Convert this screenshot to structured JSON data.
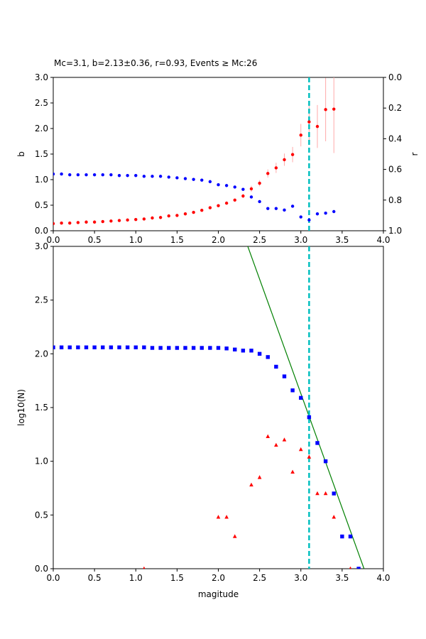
{
  "chart_data": [
    {
      "type": "scatter",
      "title": "Mc=3.1, b=2.13±0.36, r=0.93, Events ≥ Mc:26",
      "xlabel": "",
      "ylabel": "b",
      "ylabel_right": "r",
      "xlim": [
        0.0,
        4.0
      ],
      "ylim": [
        0.0,
        3.0
      ],
      "ylim_right": [
        1.0,
        0.0
      ],
      "right_axis_inverted": true,
      "xticks": [
        "0.0",
        "0.5",
        "1.0",
        "1.5",
        "2.0",
        "2.5",
        "3.0",
        "3.5",
        "4.0"
      ],
      "yticks": [
        "0.0",
        "0.5",
        "1.0",
        "1.5",
        "2.0",
        "2.5",
        "3.0"
      ],
      "yticks_right": [
        "0.0",
        "0.2",
        "0.4",
        "0.6",
        "0.8",
        "1.0"
      ],
      "colors": {
        "b_value": "#ff0000",
        "b_error": "#ffaaaa",
        "r_value": "#0000ff",
        "mc_line": "#00bfbf"
      },
      "mc_line_x": 3.1,
      "b_series": {
        "x": [
          0.0,
          0.1,
          0.2,
          0.3,
          0.4,
          0.5,
          0.6,
          0.7,
          0.8,
          0.9,
          1.0,
          1.1,
          1.2,
          1.3,
          1.4,
          1.5,
          1.6,
          1.7,
          1.8,
          1.9,
          2.0,
          2.1,
          2.2,
          2.3,
          2.4,
          2.5,
          2.6,
          2.7,
          2.8,
          2.9,
          3.0,
          3.1,
          3.2,
          3.3,
          3.4
        ],
        "y": [
          0.14,
          0.15,
          0.15,
          0.16,
          0.17,
          0.17,
          0.18,
          0.19,
          0.2,
          0.21,
          0.22,
          0.23,
          0.25,
          0.26,
          0.29,
          0.3,
          0.33,
          0.36,
          0.4,
          0.45,
          0.49,
          0.54,
          0.6,
          0.68,
          0.82,
          0.93,
          1.12,
          1.23,
          1.39,
          1.49,
          1.87,
          2.13,
          2.04,
          2.37,
          2.38
        ],
        "err": [
          0.0,
          0.0,
          0.0,
          0.0,
          0.0,
          0.0,
          0.0,
          0.0,
          0.0,
          0.0,
          0.0,
          0.0,
          0.0,
          0.0,
          0.0,
          0.0,
          0.0,
          0.0,
          0.0,
          0.0,
          0.0,
          0.0,
          0.03,
          0.04,
          0.06,
          0.06,
          0.08,
          0.1,
          0.12,
          0.15,
          0.22,
          0.36,
          0.42,
          0.62,
          0.86
        ]
      },
      "r_series": {
        "x": [
          0.0,
          0.1,
          0.2,
          0.3,
          0.4,
          0.5,
          0.6,
          0.7,
          0.8,
          0.9,
          1.0,
          1.1,
          1.2,
          1.3,
          1.4,
          1.5,
          1.6,
          1.7,
          1.8,
          1.9,
          2.0,
          2.1,
          2.2,
          2.3,
          2.4,
          2.5,
          2.6,
          2.7,
          2.8,
          2.9,
          3.0,
          3.1,
          3.2,
          3.3,
          3.4
        ],
        "y": [
          0.63,
          0.63,
          0.635,
          0.635,
          0.635,
          0.635,
          0.635,
          0.635,
          0.64,
          0.64,
          0.64,
          0.645,
          0.645,
          0.645,
          0.65,
          0.655,
          0.66,
          0.665,
          0.67,
          0.68,
          0.7,
          0.705,
          0.715,
          0.73,
          0.78,
          0.81,
          0.855,
          0.855,
          0.865,
          0.84,
          0.91,
          0.93,
          0.89,
          0.885,
          0.875
        ]
      }
    },
    {
      "type": "scatter",
      "title": "",
      "xlabel": "magitude",
      "ylabel": "log10(N)",
      "xlim": [
        0.0,
        4.0
      ],
      "ylim": [
        0.0,
        3.0
      ],
      "xticks": [
        "0.0",
        "0.5",
        "1.0",
        "1.5",
        "2.0",
        "2.5",
        "3.0",
        "3.5",
        "4.0"
      ],
      "yticks": [
        "0.0",
        "0.5",
        "1.0",
        "1.5",
        "2.0",
        "2.5",
        "3.0"
      ],
      "colors": {
        "cumulative": "#0000ff",
        "incremental": "#ff0000",
        "fit_line": "#008000",
        "mc_line": "#00bfbf"
      },
      "mc_line_x": 3.1,
      "cumulative_series": {
        "x": [
          0.0,
          0.1,
          0.2,
          0.3,
          0.4,
          0.5,
          0.6,
          0.7,
          0.8,
          0.9,
          1.0,
          1.1,
          1.2,
          1.3,
          1.4,
          1.5,
          1.6,
          1.7,
          1.8,
          1.9,
          2.0,
          2.1,
          2.2,
          2.3,
          2.4,
          2.5,
          2.6,
          2.7,
          2.8,
          2.9,
          3.0,
          3.1,
          3.2,
          3.3,
          3.4,
          3.5,
          3.6,
          3.7
        ],
        "y": [
          2.06,
          2.06,
          2.06,
          2.06,
          2.06,
          2.06,
          2.06,
          2.06,
          2.06,
          2.06,
          2.06,
          2.06,
          2.055,
          2.055,
          2.055,
          2.055,
          2.055,
          2.055,
          2.055,
          2.055,
          2.055,
          2.05,
          2.04,
          2.03,
          2.03,
          2.0,
          1.97,
          1.88,
          1.79,
          1.66,
          1.59,
          1.41,
          1.17,
          1.0,
          0.7,
          0.3,
          0.3,
          0.0
        ]
      },
      "incremental_series": {
        "x": [
          1.1,
          2.0,
          2.1,
          2.2,
          2.4,
          2.5,
          2.6,
          2.7,
          2.8,
          2.9,
          3.0,
          3.1,
          3.2,
          3.3,
          3.4,
          3.6
        ],
        "y": [
          0.0,
          0.48,
          0.48,
          0.3,
          0.78,
          0.85,
          1.23,
          1.15,
          1.2,
          0.9,
          1.11,
          1.04,
          0.7,
          0.7,
          0.48,
          0.0
        ]
      },
      "fit_line": {
        "a": 8.02,
        "b": 2.13
      }
    }
  ]
}
